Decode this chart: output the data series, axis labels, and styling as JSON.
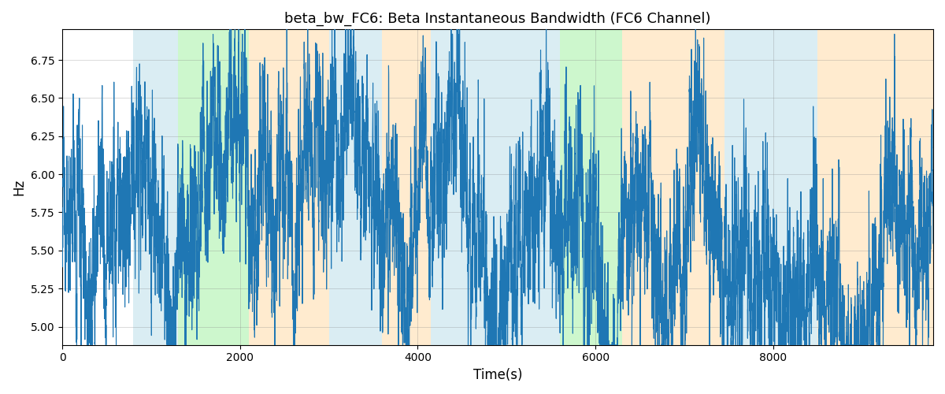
{
  "title": "beta_bw_FC6: Beta Instantaneous Bandwidth (FC6 Channel)",
  "xlabel": "Time(s)",
  "ylabel": "Hz",
  "ylim": [
    4.88,
    6.95
  ],
  "xlim": [
    0,
    9800
  ],
  "line_color": "#1f77b4",
  "line_width": 0.8,
  "figsize": [
    12,
    5
  ],
  "dpi": 100,
  "seed": 12345,
  "n_points": 9800,
  "colored_regions": [
    {
      "start": 800,
      "end": 1300,
      "color": "#add8e6",
      "alpha": 0.45
    },
    {
      "start": 1300,
      "end": 2100,
      "color": "#90ee90",
      "alpha": 0.45
    },
    {
      "start": 2100,
      "end": 3000,
      "color": "#ffd9a0",
      "alpha": 0.5
    },
    {
      "start": 3000,
      "end": 3600,
      "color": "#add8e6",
      "alpha": 0.45
    },
    {
      "start": 3600,
      "end": 4150,
      "color": "#ffd9a0",
      "alpha": 0.5
    },
    {
      "start": 4150,
      "end": 5600,
      "color": "#add8e6",
      "alpha": 0.45
    },
    {
      "start": 5600,
      "end": 6300,
      "color": "#90ee90",
      "alpha": 0.45
    },
    {
      "start": 6300,
      "end": 7450,
      "color": "#ffd9a0",
      "alpha": 0.5
    },
    {
      "start": 7450,
      "end": 8500,
      "color": "#add8e6",
      "alpha": 0.45
    },
    {
      "start": 8500,
      "end": 9800,
      "color": "#ffd9a0",
      "alpha": 0.5
    }
  ],
  "xticks": [
    0,
    2000,
    4000,
    6000,
    8000
  ],
  "yticks": [
    5.0,
    5.25,
    5.5,
    5.75,
    6.0,
    6.25,
    6.5,
    6.75
  ],
  "title_fontsize": 13,
  "label_fontsize": 12,
  "tick_fontsize": 10,
  "mean": 5.78,
  "ar_coef_slow": 0.997,
  "ar_coef_fast": 0.7,
  "slow_noise_std": 0.04,
  "fast_noise_std": 0.22
}
